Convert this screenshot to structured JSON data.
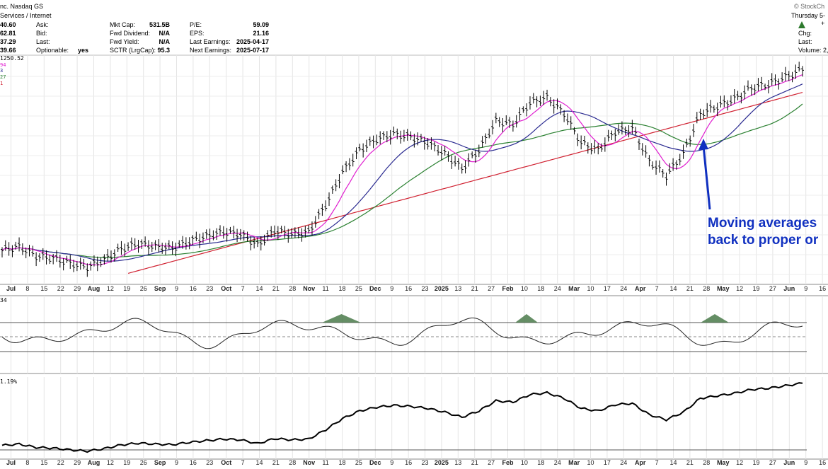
{
  "header": {
    "company_fragment": "nc. Nasdaq GS",
    "sector": "Services / Internet",
    "watermark": "© StockCh",
    "date_fragment": "Thursday 5-",
    "plus_fragment": "+",
    "col1_values": [
      "40.60",
      "62.81",
      "37.29",
      "39.66"
    ],
    "col2_labels": [
      "Ask:",
      "Bid:",
      "Last:",
      "Optionable:"
    ],
    "optionable_value": "yes",
    "col3": [
      {
        "label": "Mkt Cap:",
        "value": "531.5B"
      },
      {
        "label": "Fwd Dividend:",
        "value": "N/A"
      },
      {
        "label": "Fwd Yield:",
        "value": "N/A"
      },
      {
        "label": "SCTR (LrgCap):",
        "value": "95.3"
      }
    ],
    "col4": [
      {
        "label": "P/E:",
        "value": "59.09"
      },
      {
        "label": "EPS:",
        "value": "21.16"
      },
      {
        "label": "Last Earnings:",
        "value": "2025-04-17"
      },
      {
        "label": "Next Earnings:",
        "value": "2025-07-17"
      }
    ],
    "right_labels": [
      "Chg:",
      "Last:",
      "Volume: 2,"
    ],
    "legend_fragments": [
      "1250.52",
      "94",
      "3",
      "27",
      "1"
    ],
    "rsi_label": "34",
    "perf_label": "1.19%",
    "colors": {
      "up_arrow": "#2d7a2d",
      "callout": "#1030c0"
    }
  },
  "callout": {
    "line1": "Moving averages",
    "line2": "back to proper or"
  },
  "chart_data": {
    "type": "line",
    "x_tick_labels": [
      "Jul",
      "8",
      "15",
      "22",
      "29",
      "Aug",
      "12",
      "19",
      "26",
      "Sep",
      "9",
      "16",
      "23",
      "Oct",
      "7",
      "14",
      "21",
      "28",
      "Nov",
      "11",
      "18",
      "25",
      "Dec",
      "9",
      "16",
      "23",
      "2025",
      "13",
      "21",
      "27",
      "Feb",
      "10",
      "18",
      "24",
      "Mar",
      "10",
      "17",
      "24",
      "Apr",
      "7",
      "14",
      "21",
      "28",
      "May",
      "12",
      "19",
      "27",
      "Jun",
      "9",
      "16"
    ],
    "bold_ticks": [
      "Jul",
      "Aug",
      "Sep",
      "Oct",
      "Nov",
      "Dec",
      "2025",
      "Feb",
      "Mar",
      "Apr",
      "May",
      "Jun"
    ],
    "price_approx": [
      1003,
      1008,
      995,
      992,
      985,
      980,
      990,
      1005,
      1012,
      1008,
      1006,
      1015,
      1022,
      1028,
      1025,
      1010,
      1030,
      1025,
      1028,
      1065,
      1110,
      1140,
      1155,
      1162,
      1158,
      1150,
      1135,
      1115,
      1140,
      1180,
      1175,
      1205,
      1212,
      1190,
      1150,
      1140,
      1165,
      1170,
      1125,
      1105,
      1135,
      1190,
      1200,
      1210,
      1225,
      1230,
      1240,
      1250
    ],
    "series": [
      {
        "name": "price",
        "color": "#000000"
      },
      {
        "name": "ma1",
        "color": "#e020d0"
      },
      {
        "name": "ma2",
        "color": "#2a2a90"
      },
      {
        "name": "ma3",
        "color": "#2a8030"
      },
      {
        "name": "ma4",
        "color": "#d02030"
      }
    ],
    "grid": true,
    "panels": [
      "price",
      "oscillator",
      "performance"
    ]
  }
}
